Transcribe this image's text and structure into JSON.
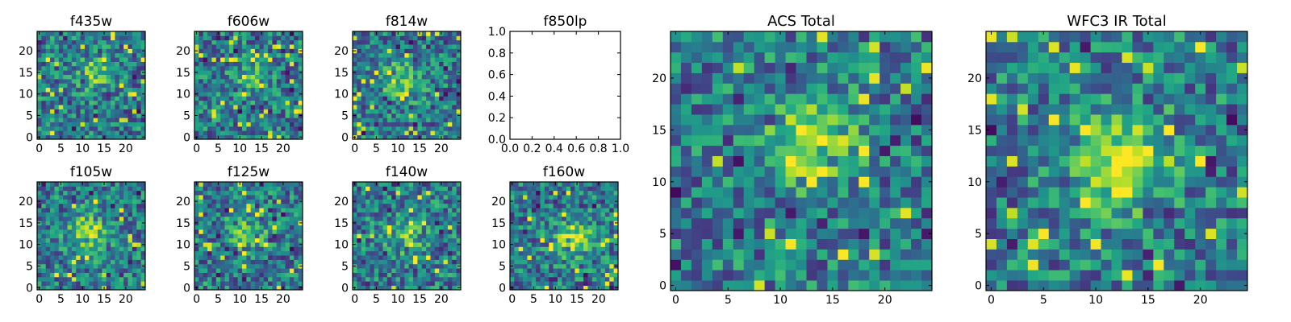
{
  "chart_data": [
    {
      "type": "heatmap",
      "title": "f435w",
      "x_ticks": [
        "0",
        "5",
        "10",
        "15",
        "20"
      ],
      "y_ticks": [
        "0",
        "5",
        "10",
        "15",
        "20"
      ],
      "xlim": [
        -0.5,
        24.5
      ],
      "ylim": [
        -0.5,
        24.5
      ],
      "grid_size": [
        25,
        25
      ],
      "colormap": "viridis",
      "empty": false,
      "blob": [
        13,
        15,
        2.5,
        0.35
      ],
      "seed": 11
    },
    {
      "type": "heatmap",
      "title": "f606w",
      "x_ticks": [
        "0",
        "5",
        "10",
        "15",
        "20"
      ],
      "y_ticks": [
        "0",
        "5",
        "10",
        "15",
        "20"
      ],
      "xlim": [
        -0.5,
        24.5
      ],
      "ylim": [
        -0.5,
        24.5
      ],
      "grid_size": [
        25,
        25
      ],
      "colormap": "viridis",
      "empty": false,
      "blob": [
        13,
        14,
        2.5,
        0.3
      ],
      "seed": 23
    },
    {
      "type": "heatmap",
      "title": "f814w",
      "x_ticks": [
        "0",
        "5",
        "10",
        "15",
        "20"
      ],
      "y_ticks": [
        "0",
        "5",
        "10",
        "15",
        "20"
      ],
      "xlim": [
        -0.5,
        24.5
      ],
      "ylim": [
        -0.5,
        24.5
      ],
      "grid_size": [
        25,
        25
      ],
      "colormap": "viridis",
      "empty": false,
      "blob": [
        11,
        13,
        3,
        0.35
      ],
      "seed": 37
    },
    {
      "type": "line",
      "title": "f850lp",
      "x_ticks": [
        "0.0",
        "0.2",
        "0.4",
        "0.6",
        "0.8",
        "1.0"
      ],
      "y_ticks": [
        "0.0",
        "0.2",
        "0.4",
        "0.6",
        "0.8",
        "1.0"
      ],
      "xlim": [
        0,
        1
      ],
      "ylim": [
        0,
        1
      ],
      "empty": true
    },
    {
      "type": "heatmap",
      "title": "f105w",
      "x_ticks": [
        "0",
        "5",
        "10",
        "15",
        "20"
      ],
      "y_ticks": [
        "0",
        "5",
        "10",
        "15",
        "20"
      ],
      "xlim": [
        -0.5,
        24.5
      ],
      "ylim": [
        -0.5,
        24.5
      ],
      "grid_size": [
        25,
        25
      ],
      "colormap": "viridis",
      "empty": false,
      "blob": [
        11,
        13,
        3,
        0.45
      ],
      "seed": 41
    },
    {
      "type": "heatmap",
      "title": "f125w",
      "x_ticks": [
        "0",
        "5",
        "10",
        "15",
        "20"
      ],
      "y_ticks": [
        "0",
        "5",
        "10",
        "15",
        "20"
      ],
      "xlim": [
        -0.5,
        24.5
      ],
      "ylim": [
        -0.5,
        24.5
      ],
      "grid_size": [
        25,
        25
      ],
      "colormap": "viridis",
      "empty": false,
      "blob": [
        12,
        13,
        3,
        0.3
      ],
      "seed": 53
    },
    {
      "type": "heatmap",
      "title": "f140w",
      "x_ticks": [
        "0",
        "5",
        "10",
        "15",
        "20"
      ],
      "y_ticks": [
        "0",
        "5",
        "10",
        "15",
        "20"
      ],
      "xlim": [
        -0.5,
        24.5
      ],
      "ylim": [
        -0.5,
        24.5
      ],
      "grid_size": [
        25,
        25
      ],
      "colormap": "viridis",
      "empty": false,
      "blob": [
        12,
        12,
        3,
        0.25
      ],
      "seed": 67
    },
    {
      "type": "heatmap",
      "title": "f160w",
      "x_ticks": [
        "0",
        "5",
        "10",
        "15",
        "20"
      ],
      "y_ticks": [
        "0",
        "5",
        "10",
        "15",
        "20"
      ],
      "xlim": [
        -0.5,
        24.5
      ],
      "ylim": [
        -0.5,
        24.5
      ],
      "grid_size": [
        25,
        25
      ],
      "colormap": "viridis",
      "empty": false,
      "blob": [
        14,
        12,
        3,
        0.45
      ],
      "seed": 79
    },
    {
      "type": "heatmap",
      "title": "ACS Total",
      "x_ticks": [
        "0",
        "5",
        "10",
        "15",
        "20"
      ],
      "y_ticks": [
        "0",
        "5",
        "10",
        "15",
        "20"
      ],
      "xlim": [
        -0.5,
        24.5
      ],
      "ylim": [
        -0.5,
        24.5
      ],
      "grid_size": [
        25,
        25
      ],
      "colormap": "viridis",
      "empty": false,
      "blob": [
        13,
        14,
        2.8,
        0.5
      ],
      "seed": 97
    },
    {
      "type": "heatmap",
      "title": "WFC3 IR Total",
      "x_ticks": [
        "0",
        "5",
        "10",
        "15",
        "20"
      ],
      "y_ticks": [
        "0",
        "5",
        "10",
        "15",
        "20"
      ],
      "xlim": [
        -0.5,
        24.5
      ],
      "ylim": [
        -0.5,
        24.5
      ],
      "grid_size": [
        25,
        25
      ],
      "colormap": "viridis",
      "empty": false,
      "blob": [
        13,
        12,
        3,
        0.5
      ],
      "seed": 103
    }
  ]
}
